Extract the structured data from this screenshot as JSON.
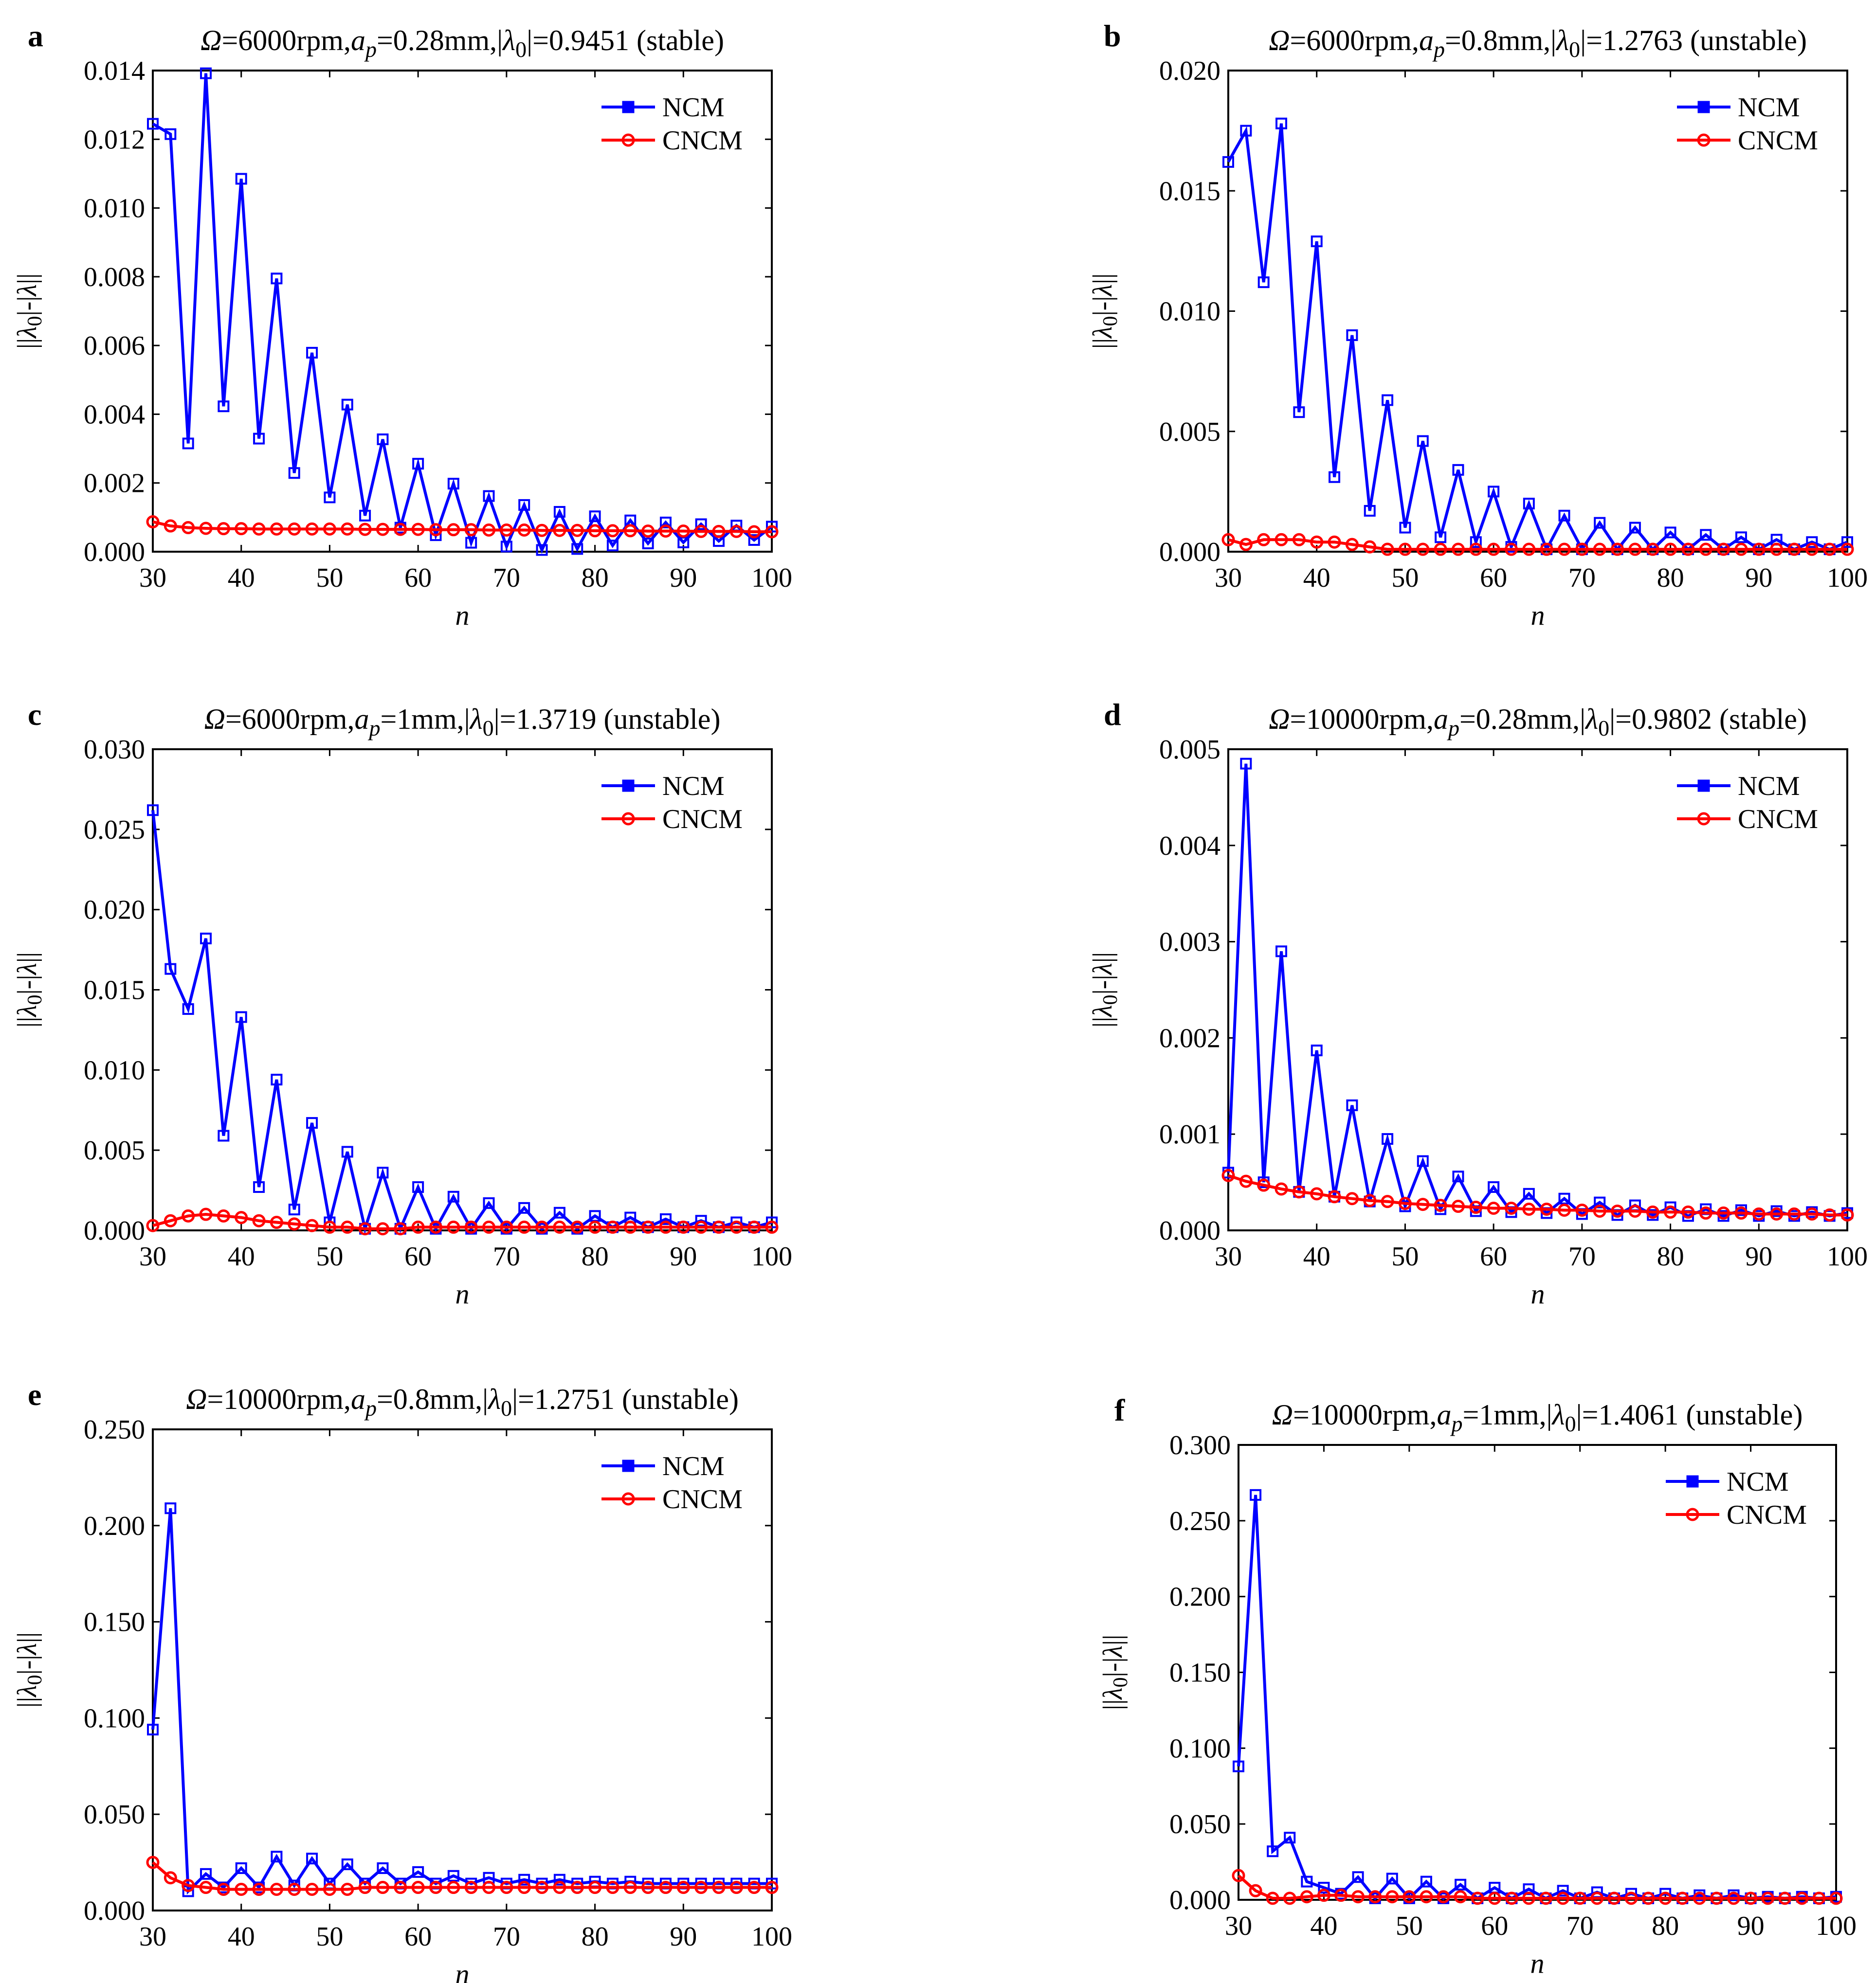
{
  "colors": {
    "ncm": "#0000ff",
    "cncm": "#ff0000",
    "axis": "#000000",
    "background": "#ffffff"
  },
  "chart_data": [
    {
      "type": "line",
      "panel_letter": "a",
      "title": {
        "omega": "Ω",
        "pre": "=6000rpm,",
        "a": "a",
        "p": "p",
        "mid": "=0.28mm,|",
        "lambda": "λ",
        "zero": "0",
        "post": "|=0.9451 (stable)"
      },
      "xlabel": "n",
      "ylabel": {
        "pre": "||",
        "lambda": "λ",
        "zero": "0",
        "mid": "|-|",
        "lambda2": "λ",
        "post": "||"
      },
      "xlim": [
        30,
        100
      ],
      "ylim": [
        0,
        0.014
      ],
      "xticks": [
        "30",
        "40",
        "50",
        "60",
        "70",
        "80",
        "90",
        "100"
      ],
      "yticks": [
        "0.000",
        "0.002",
        "0.004",
        "0.006",
        "0.008",
        "0.010",
        "0.012",
        "0.014"
      ],
      "legend": [
        "NCM",
        "CNCM"
      ],
      "x": [
        30,
        32,
        34,
        36,
        38,
        40,
        42,
        44,
        46,
        48,
        50,
        52,
        54,
        56,
        58,
        60,
        62,
        64,
        66,
        68,
        70,
        72,
        74,
        76,
        78,
        80,
        82,
        84,
        86,
        88,
        90,
        92,
        94,
        96,
        98,
        100
      ],
      "series": [
        {
          "name": "NCM",
          "values": [
            0.01245,
            0.01215,
            0.00315,
            0.01392,
            0.00423,
            0.01085,
            0.00329,
            0.00795,
            0.00229,
            0.00579,
            0.00158,
            0.00428,
            0.00105,
            0.00327,
            0.0007,
            0.00256,
            0.00048,
            0.00198,
            0.00026,
            0.00162,
            0.00015,
            0.00136,
            5e-05,
            0.00116,
            8e-05,
            0.00103,
            0.00018,
            0.00091,
            0.00024,
            0.00085,
            0.00027,
            0.0008,
            0.00031,
            0.00076,
            0.00034,
            0.00073
          ]
        },
        {
          "name": "CNCM",
          "values": [
            0.00087,
            0.00075,
            0.0007,
            0.00068,
            0.00067,
            0.00067,
            0.00066,
            0.00066,
            0.00066,
            0.00066,
            0.00066,
            0.00066,
            0.00065,
            0.00065,
            0.00065,
            0.00065,
            0.00064,
            0.00064,
            0.00064,
            0.00063,
            0.00063,
            0.00063,
            0.00062,
            0.00062,
            0.00062,
            0.00061,
            0.00061,
            0.00061,
            0.0006,
            0.0006,
            0.0006,
            0.00059,
            0.00059,
            0.00059,
            0.00058,
            0.00058
          ]
        }
      ]
    },
    {
      "type": "line",
      "panel_letter": "b",
      "title": {
        "omega": "Ω",
        "pre": "=6000rpm,",
        "a": "a",
        "p": "p",
        "mid": "=0.8mm,|",
        "lambda": "λ",
        "zero": "0",
        "post": "|=1.2763 (unstable)"
      },
      "xlabel": "n",
      "ylabel": {
        "pre": "||",
        "lambda": "λ",
        "zero": "0",
        "mid": "|-|",
        "lambda2": "λ",
        "post": "||"
      },
      "xlim": [
        30,
        100
      ],
      "ylim": [
        0,
        0.02
      ],
      "xticks": [
        "30",
        "40",
        "50",
        "60",
        "70",
        "80",
        "90",
        "100"
      ],
      "yticks": [
        "0.000",
        "0.005",
        "0.010",
        "0.015",
        "0.020"
      ],
      "legend": [
        "NCM",
        "CNCM"
      ],
      "x": [
        30,
        32,
        34,
        36,
        38,
        40,
        42,
        44,
        46,
        48,
        50,
        52,
        54,
        56,
        58,
        60,
        62,
        64,
        66,
        68,
        70,
        72,
        74,
        76,
        78,
        80,
        82,
        84,
        86,
        88,
        90,
        92,
        94,
        96,
        98,
        100
      ],
      "series": [
        {
          "name": "NCM",
          "values": [
            0.0162,
            0.0175,
            0.0112,
            0.0178,
            0.0058,
            0.0129,
            0.0031,
            0.009,
            0.0017,
            0.0063,
            0.001,
            0.0046,
            0.0006,
            0.0034,
            0.0004,
            0.0025,
            0.0002,
            0.002,
            0.0001,
            0.0015,
            0.0001,
            0.0012,
            0.0001,
            0.001,
            0.0001,
            0.0008,
            0.0001,
            0.0007,
            0.0001,
            0.0006,
            0.0001,
            0.0005,
            0.0001,
            0.0004,
            0.0001,
            0.0004
          ]
        },
        {
          "name": "CNCM",
          "values": [
            0.0005,
            0.0003,
            0.0005,
            0.0005,
            0.0005,
            0.0004,
            0.0004,
            0.0003,
            0.0002,
            0.0001,
            0.0001,
            0.0001,
            0.0001,
            0.0001,
            0.0001,
            0.0001,
            0.0001,
            0.0001,
            0.0001,
            0.0001,
            0.0001,
            0.0001,
            0.0001,
            0.0001,
            0.0001,
            0.0001,
            0.0001,
            0.0001,
            0.0001,
            0.0001,
            0.0001,
            0.0001,
            0.0001,
            0.0001,
            0.0001,
            0.0001
          ]
        }
      ]
    },
    {
      "type": "line",
      "panel_letter": "c",
      "title": {
        "omega": "Ω",
        "pre": "=6000rpm,",
        "a": "a",
        "p": "p",
        "mid": "=1mm,|",
        "lambda": "λ",
        "zero": "0",
        "post": "|=1.3719 (unstable)"
      },
      "xlabel": "n",
      "ylabel": {
        "pre": "||",
        "lambda": "λ",
        "zero": "0",
        "mid": "|-|",
        "lambda2": "λ",
        "post": "||"
      },
      "xlim": [
        30,
        100
      ],
      "ylim": [
        0,
        0.03
      ],
      "xticks": [
        "30",
        "40",
        "50",
        "60",
        "70",
        "80",
        "90",
        "100"
      ],
      "yticks": [
        "0.000",
        "0.005",
        "0.010",
        "0.015",
        "0.020",
        "0.025",
        "0.030"
      ],
      "legend": [
        "NCM",
        "CNCM"
      ],
      "x": [
        30,
        32,
        34,
        36,
        38,
        40,
        42,
        44,
        46,
        48,
        50,
        52,
        54,
        56,
        58,
        60,
        62,
        64,
        66,
        68,
        70,
        72,
        74,
        76,
        78,
        80,
        82,
        84,
        86,
        88,
        90,
        92,
        94,
        96,
        98,
        100
      ],
      "series": [
        {
          "name": "NCM",
          "values": [
            0.0262,
            0.0163,
            0.0138,
            0.0182,
            0.0059,
            0.0133,
            0.0027,
            0.0094,
            0.0013,
            0.0067,
            0.0005,
            0.0049,
            0.0001,
            0.0036,
            0.0001,
            0.0027,
            0.0001,
            0.0021,
            0.0001,
            0.0017,
            0.0001,
            0.0014,
            0.0001,
            0.0011,
            0.0001,
            0.0009,
            0.0002,
            0.0008,
            0.0002,
            0.0007,
            0.0002,
            0.0006,
            0.0002,
            0.0005,
            0.0002,
            0.0005
          ]
        },
        {
          "name": "CNCM",
          "values": [
            0.0003,
            0.0006,
            0.0009,
            0.001,
            0.0009,
            0.0008,
            0.0006,
            0.0005,
            0.0004,
            0.0003,
            0.0002,
            0.0002,
            0.0001,
            0.0001,
            0.0001,
            0.0002,
            0.0002,
            0.0002,
            0.0002,
            0.0002,
            0.0002,
            0.0002,
            0.0002,
            0.0002,
            0.0002,
            0.0002,
            0.0002,
            0.0002,
            0.0002,
            0.0002,
            0.0002,
            0.0002,
            0.0002,
            0.0002,
            0.0002,
            0.0002
          ]
        }
      ]
    },
    {
      "type": "line",
      "panel_letter": "d",
      "title": {
        "omega": "Ω",
        "pre": "=10000rpm,",
        "a": "a",
        "p": "p",
        "mid": "=0.28mm,|",
        "lambda": "λ",
        "zero": "0",
        "post": "|=0.9802 (stable)"
      },
      "xlabel": "n",
      "ylabel": {
        "pre": "||",
        "lambda": "λ",
        "zero": "0",
        "mid": "|-|",
        "lambda2": "λ",
        "post": "||"
      },
      "xlim": [
        30,
        100
      ],
      "ylim": [
        0,
        0.005
      ],
      "xticks": [
        "30",
        "40",
        "50",
        "60",
        "70",
        "80",
        "90",
        "100"
      ],
      "yticks": [
        "0.000",
        "0.001",
        "0.002",
        "0.003",
        "0.004",
        "0.005"
      ],
      "legend": [
        "NCM",
        "CNCM"
      ],
      "x": [
        30,
        32,
        34,
        36,
        38,
        40,
        42,
        44,
        46,
        48,
        50,
        52,
        54,
        56,
        58,
        60,
        62,
        64,
        66,
        68,
        70,
        72,
        74,
        76,
        78,
        80,
        82,
        84,
        86,
        88,
        90,
        92,
        94,
        96,
        98,
        100
      ],
      "series": [
        {
          "name": "NCM",
          "values": [
            0.0006,
            0.00485,
            0.0005,
            0.0029,
            0.0004,
            0.00187,
            0.00035,
            0.0013,
            0.0003,
            0.00095,
            0.00025,
            0.00072,
            0.00022,
            0.00056,
            0.0002,
            0.00045,
            0.00019,
            0.00038,
            0.00018,
            0.00033,
            0.00017,
            0.00029,
            0.00016,
            0.00026,
            0.00016,
            0.00024,
            0.00015,
            0.00022,
            0.00015,
            0.00021,
            0.00015,
            0.0002,
            0.00015,
            0.00019,
            0.00015,
            0.00018
          ]
        },
        {
          "name": "CNCM",
          "values": [
            0.00057,
            0.00051,
            0.00047,
            0.00043,
            0.0004,
            0.00038,
            0.00035,
            0.00033,
            0.00031,
            0.0003,
            0.00028,
            0.00027,
            0.00026,
            0.00025,
            0.00024,
            0.00023,
            0.00023,
            0.00022,
            0.00022,
            0.00021,
            0.00021,
            0.0002,
            0.0002,
            0.0002,
            0.00019,
            0.00019,
            0.00019,
            0.00018,
            0.00018,
            0.00018,
            0.00017,
            0.00017,
            0.00017,
            0.00017,
            0.00016,
            0.00016
          ]
        }
      ]
    },
    {
      "type": "line",
      "panel_letter": "e",
      "title": {
        "omega": "Ω",
        "pre": "=10000rpm,",
        "a": "a",
        "p": "p",
        "mid": "=0.8mm,|",
        "lambda": "λ",
        "zero": "0",
        "post": "|=1.2751 (unstable)"
      },
      "xlabel": "n",
      "ylabel": {
        "pre": "||",
        "lambda": "λ",
        "zero": "0",
        "mid": "|-|",
        "lambda2": "λ",
        "post": "||"
      },
      "xlim": [
        30,
        100
      ],
      "ylim": [
        0,
        0.25
      ],
      "xticks": [
        "30",
        "40",
        "50",
        "60",
        "70",
        "80",
        "90",
        "100"
      ],
      "yticks": [
        "0.000",
        "0.050",
        "0.100",
        "0.150",
        "0.200",
        "0.250"
      ],
      "legend": [
        "NCM",
        "CNCM"
      ],
      "x": [
        30,
        32,
        34,
        36,
        38,
        40,
        42,
        44,
        46,
        48,
        50,
        52,
        54,
        56,
        58,
        60,
        62,
        64,
        66,
        68,
        70,
        72,
        74,
        76,
        78,
        80,
        82,
        84,
        86,
        88,
        90,
        92,
        94,
        96,
        98,
        100
      ],
      "series": [
        {
          "name": "NCM",
          "values": [
            0.094,
            0.209,
            0.01,
            0.019,
            0.012,
            0.022,
            0.012,
            0.028,
            0.013,
            0.027,
            0.014,
            0.024,
            0.014,
            0.022,
            0.014,
            0.02,
            0.014,
            0.018,
            0.014,
            0.017,
            0.014,
            0.016,
            0.014,
            0.016,
            0.014,
            0.015,
            0.014,
            0.015,
            0.014,
            0.014,
            0.014,
            0.014,
            0.014,
            0.014,
            0.014,
            0.014
          ]
        },
        {
          "name": "CNCM",
          "values": [
            0.025,
            0.017,
            0.013,
            0.012,
            0.011,
            0.011,
            0.011,
            0.011,
            0.011,
            0.011,
            0.011,
            0.011,
            0.012,
            0.012,
            0.012,
            0.012,
            0.012,
            0.012,
            0.012,
            0.012,
            0.012,
            0.012,
            0.012,
            0.012,
            0.012,
            0.012,
            0.012,
            0.012,
            0.012,
            0.012,
            0.012,
            0.012,
            0.012,
            0.012,
            0.012,
            0.012
          ]
        }
      ]
    },
    {
      "type": "line",
      "panel_letter": "f",
      "title": {
        "omega": "Ω",
        "pre": "=10000rpm,",
        "a": "a",
        "p": "p",
        "mid": "=1mm,|",
        "lambda": "λ",
        "zero": "0",
        "post": "|=1.4061 (unstable)"
      },
      "xlabel": "n",
      "ylabel": {
        "pre": "||",
        "lambda": "λ",
        "zero": "0",
        "mid": "|-|",
        "lambda2": "λ",
        "post": "||"
      },
      "xlim": [
        30,
        100
      ],
      "ylim": [
        0,
        0.3
      ],
      "xticks": [
        "30",
        "40",
        "50",
        "60",
        "70",
        "80",
        "90",
        "100"
      ],
      "yticks": [
        "0.000",
        "0.050",
        "0.100",
        "0.150",
        "0.200",
        "0.250",
        "0.300"
      ],
      "legend": [
        "NCM",
        "CNCM"
      ],
      "x": [
        30,
        32,
        34,
        36,
        38,
        40,
        42,
        44,
        46,
        48,
        50,
        52,
        54,
        56,
        58,
        60,
        62,
        64,
        66,
        68,
        70,
        72,
        74,
        76,
        78,
        80,
        82,
        84,
        86,
        88,
        90,
        92,
        94,
        96,
        98,
        100
      ],
      "series": [
        {
          "name": "NCM",
          "values": [
            0.088,
            0.267,
            0.032,
            0.041,
            0.012,
            0.008,
            0.004,
            0.015,
            0.001,
            0.014,
            0.001,
            0.012,
            0.001,
            0.01,
            0.001,
            0.008,
            0.001,
            0.007,
            0.001,
            0.006,
            0.001,
            0.005,
            0.001,
            0.004,
            0.001,
            0.004,
            0.001,
            0.003,
            0.001,
            0.003,
            0.001,
            0.002,
            0.001,
            0.002,
            0.001,
            0.002
          ]
        },
        {
          "name": "CNCM",
          "values": [
            0.016,
            0.006,
            0.001,
            0.001,
            0.002,
            0.003,
            0.003,
            0.002,
            0.002,
            0.002,
            0.002,
            0.002,
            0.002,
            0.002,
            0.001,
            0.001,
            0.001,
            0.001,
            0.001,
            0.001,
            0.001,
            0.001,
            0.001,
            0.001,
            0.001,
            0.001,
            0.001,
            0.001,
            0.001,
            0.001,
            0.001,
            0.001,
            0.001,
            0.001,
            0.001,
            0.001
          ]
        }
      ]
    }
  ]
}
